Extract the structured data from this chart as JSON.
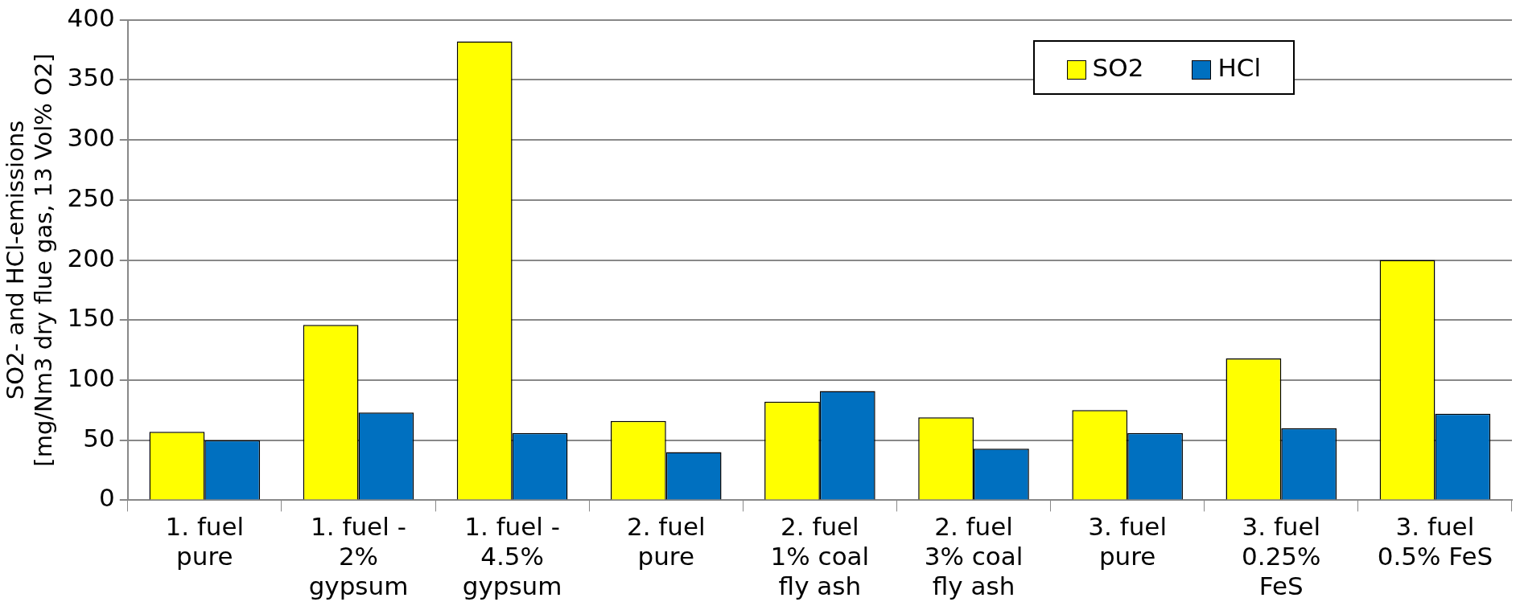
{
  "chart_data": {
    "type": "bar",
    "ylabel": "SO2- and HCl-emissions\n[mg/Nm3 dry flue gas, 13 Vol% O2]",
    "categories": [
      "1. fuel\npure",
      "1. fuel -\n2%\ngypsum",
      "1. fuel -\n4.5%\ngypsum",
      "2. fuel\npure",
      "2. fuel\n1% coal\nfly ash",
      "2. fuel\n3% coal\nfly ash",
      "3. fuel\npure",
      "3. fuel\n0.25%\nFeS",
      "3. fuel\n0.5% FeS"
    ],
    "series": [
      {
        "name": "SO2",
        "color": "#ffff00",
        "values": [
          57,
          146,
          382,
          66,
          82,
          69,
          75,
          118,
          200
        ]
      },
      {
        "name": "HCl",
        "color": "#0070c0",
        "values": [
          50,
          73,
          56,
          40,
          91,
          43,
          56,
          60,
          72
        ]
      }
    ],
    "ylim": [
      0,
      400
    ],
    "yticks": [
      0,
      50,
      100,
      150,
      200,
      250,
      300,
      350,
      400
    ],
    "grid": "y",
    "legend": "top right"
  }
}
